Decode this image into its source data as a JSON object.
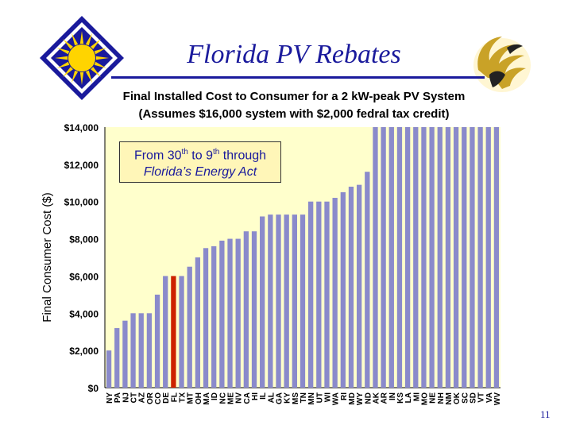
{
  "slide": {
    "title": "Florida PV Rebates",
    "number": "11"
  },
  "callout": {
    "line1_a": "From 30",
    "line1_sup1": "th",
    "line1_b": " to 9",
    "line1_sup2": "th",
    "line1_c": " through",
    "line2": "Florida’s Energy Act"
  },
  "colors": {
    "title": "#1a1a9c",
    "plot_bg": "#ffffcc",
    "bar": "#8a8acb",
    "bar_highlight": "#cc2200"
  },
  "chart_data": {
    "type": "bar",
    "title": "Final Installed Cost to Consumer for a 2 kW-peak PV System",
    "subtitle": "(Assumes $16,000 system with $2,000 fedral tax credit)",
    "ylabel": "Final Consumer Cost ($)",
    "xlabel": "",
    "ylim": [
      0,
      14000
    ],
    "yticks": [
      "$0",
      "$2,000",
      "$4,000",
      "$6,000",
      "$8,000",
      "$10,000",
      "$12,000",
      "$14,000"
    ],
    "grid": false,
    "highlight": "FL",
    "categories": [
      "NY",
      "PA",
      "NJ",
      "CT",
      "AZ",
      "OR",
      "CO",
      "DE",
      "FL",
      "TX",
      "MT",
      "OH",
      "MA",
      "ID",
      "NC",
      "ME",
      "NV",
      "CA",
      "HI",
      "IL",
      "AL",
      "GA",
      "KY",
      "MS",
      "TN",
      "MN",
      "UT",
      "WI",
      "WA",
      "RI",
      "MD",
      "WY",
      "ND",
      "AK",
      "AR",
      "IN",
      "KS",
      "LA",
      "MI",
      "MO",
      "NE",
      "NH",
      "NM",
      "OK",
      "SC",
      "SD",
      "VT",
      "VA",
      "WV"
    ],
    "values": [
      2000,
      3200,
      3600,
      4000,
      4000,
      4000,
      5000,
      6000,
      6000,
      6000,
      6500,
      7000,
      7500,
      7600,
      7900,
      8000,
      8000,
      8400,
      8400,
      9200,
      9300,
      9300,
      9300,
      9300,
      9300,
      10000,
      10000,
      10000,
      10200,
      10500,
      10800,
      10900,
      11600,
      14000,
      14000,
      14000,
      14000,
      14000,
      14000,
      14000,
      14000,
      14000,
      14000,
      14000,
      14000,
      14000,
      14000,
      14000,
      14000
    ]
  }
}
